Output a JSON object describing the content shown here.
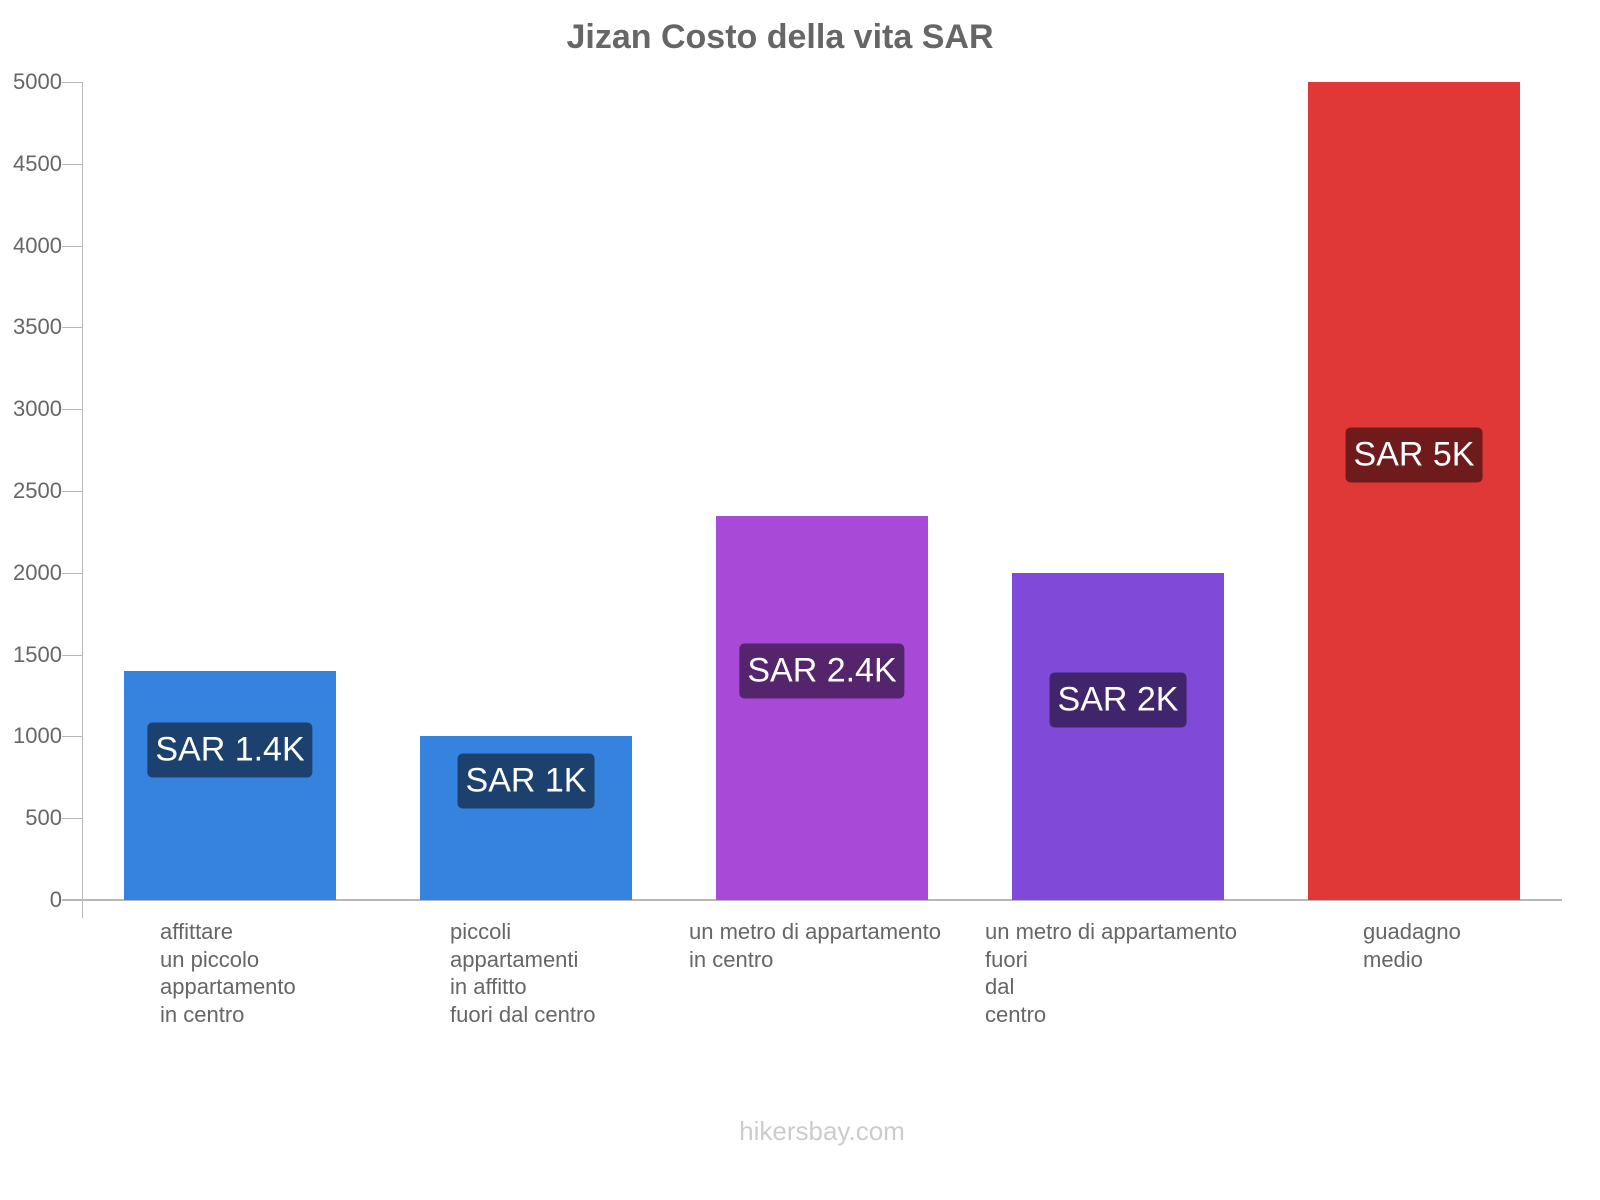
{
  "title": "Jizan Costo della vita SAR",
  "footer": "hikersbay.com",
  "colors": {
    "blue": "#3583de",
    "blue_label": "#1d416f",
    "purple": "#a849d8",
    "purple_label": "#54246c",
    "violet": "#8049d8",
    "violet_label": "#40246c",
    "red": "#e03737",
    "red_label": "#701b1b",
    "axis": "#b8b8b8",
    "text": "#666666"
  },
  "yaxis": {
    "ticks": [
      "0",
      "500",
      "1000",
      "1500",
      "2000",
      "2500",
      "3000",
      "3500",
      "4000",
      "4500",
      "5000"
    ]
  },
  "bars": [
    {
      "label_lines": [
        "affittare",
        "un piccolo",
        "appartamento",
        "in centro"
      ],
      "value_label": "SAR 1.4K"
    },
    {
      "label_lines": [
        "piccoli",
        "appartamenti",
        "in affitto",
        "fuori dal centro"
      ],
      "value_label": "SAR 1K"
    },
    {
      "label_lines": [
        "un metro di appartamento",
        "in centro"
      ],
      "value_label": "SAR 2.4K"
    },
    {
      "label_lines": [
        "un metro di appartamento",
        "fuori",
        "dal",
        "centro"
      ],
      "value_label": "SAR 2K"
    },
    {
      "label_lines": [
        "guadagno",
        "medio"
      ],
      "value_label": "SAR 5K"
    }
  ],
  "chart_data": {
    "type": "bar",
    "title": "Jizan Costo della vita SAR",
    "categories": [
      "affittare un piccolo appartamento in centro",
      "piccoli appartamenti in affitto fuori dal centro",
      "un metro di appartamento in centro",
      "un metro di appartamento fuori dal centro",
      "guadagno medio"
    ],
    "values": [
      1400,
      1000,
      2350,
      2000,
      5000
    ],
    "data_labels": [
      "SAR 1.4K",
      "SAR 1K",
      "SAR 2.4K",
      "SAR 2K",
      "SAR 5K"
    ],
    "bar_colors": [
      "#3583de",
      "#3583de",
      "#a849d8",
      "#8049d8",
      "#e03737"
    ],
    "xlabel": "",
    "ylabel": "",
    "ylim": [
      0,
      5000
    ],
    "yticks": [
      0,
      500,
      1000,
      1500,
      2000,
      2500,
      3000,
      3500,
      4000,
      4500,
      5000
    ],
    "grid": false,
    "legend": "none",
    "source": "hikersbay.com"
  }
}
